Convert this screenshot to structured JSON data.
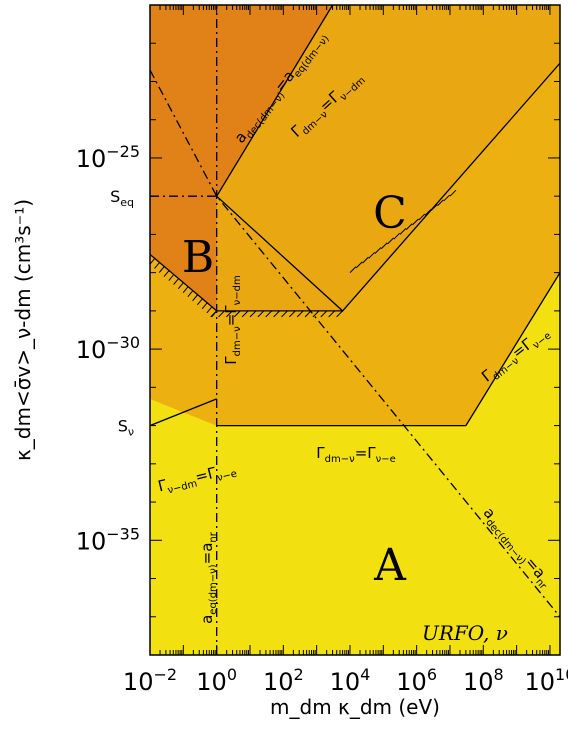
{
  "chart_data": {
    "type": "area",
    "x_scale": "log",
    "y_scale": "log",
    "xlim": [
      0.01,
      20000000000
    ],
    "ylim": [
      1e-38,
      1e-21
    ],
    "xlabel": "m_dm κ_dm (eV)",
    "ylabel": "κ_dm<σ̄v>_ν-dm (cm³s⁻¹)",
    "x_ticks": [
      {
        "base": "10",
        "exp": "−2",
        "value": 0.01
      },
      {
        "base": "10",
        "exp": "0",
        "value": 1
      },
      {
        "base": "10",
        "exp": "2",
        "value": 100
      },
      {
        "base": "10",
        "exp": "4",
        "value": 10000
      },
      {
        "base": "10",
        "exp": "6",
        "value": 1000000
      },
      {
        "base": "10",
        "exp": "8",
        "value": 100000000
      },
      {
        "base": "10",
        "exp": "10",
        "value": 10000000000
      }
    ],
    "y_ticks": [
      {
        "base": "10",
        "exp": "−25",
        "value": 1e-25
      },
      {
        "base": "10",
        "exp": "−30",
        "value": 1e-30
      },
      {
        "base": "10",
        "exp": "−35",
        "value": 1e-35
      }
    ],
    "y_markers": [
      {
        "label": "S",
        "sub": "eq",
        "value": 1e-26
      },
      {
        "label": "S",
        "sub": "ν",
        "value": 1e-32
      }
    ],
    "region_labels": [
      "A",
      "B",
      "C"
    ],
    "colors": {
      "region_A": "#f2e010",
      "region_mid": "#ecb010",
      "region_C": "#e9a812",
      "region_B": "#e08218",
      "line": "#000000"
    },
    "boundaries": [
      {
        "name": "Γ_ν-dm = Γ_ν-e",
        "style": "solid",
        "x": [
          0.01,
          1
        ],
        "y": [
          1e-32,
          5e-32
        ]
      },
      {
        "name": "Γ_dm-ν = Γ_ν-e",
        "style": "solid",
        "x": [
          1,
          30000000
        ],
        "y": [
          1e-32,
          1e-32
        ]
      },
      {
        "name": "Γ_dm-ν = Γ_ν-e (upper)",
        "style": "solid",
        "x": [
          30000000,
          20000000000
        ],
        "y": [
          1e-32,
          1e-28
        ]
      },
      {
        "name": "Γ_dm-ν = Γ_ν-dm",
        "style": "solid",
        "x": [
          1,
          6000,
          20000000000
        ],
        "y": [
          1e-26,
          1e-29,
          3e-23
        ]
      },
      {
        "name": "a_dec(dm-ν) = a_eq(dm-ν)",
        "style": "solid",
        "x": [
          1,
          3000
        ],
        "y": [
          1e-26,
          1e-21
        ]
      },
      {
        "name": "B boundary",
        "style": "solid",
        "x": [
          0.01,
          1,
          6000
        ],
        "y": [
          3e-28,
          1e-29,
          1e-29
        ]
      },
      {
        "name": "a_eq(dm-ν) = a_nr",
        "style": "dashdot",
        "x": [
          1,
          1
        ],
        "y": [
          1e-38,
          1e-21
        ]
      },
      {
        "name": "a_dec(dm-ν) = a_nr",
        "style": "dashdot",
        "x": [
          0.01,
          1,
          20000000000
        ],
        "y": [
          2e-23,
          1e-26,
          1e-37
        ]
      },
      {
        "name": "S_eq level",
        "style": "dashdot",
        "x": [
          0.01,
          1
        ],
        "y": [
          1e-26,
          1e-26
        ]
      }
    ],
    "annotations": [
      {
        "text": "URFO, ν"
      }
    ],
    "line_labels": {
      "nu_dm_nu_e": {
        "a": "Γ",
        "as": "ν−dm",
        "eq": "=",
        "b": "Γ",
        "bs": "ν−e"
      },
      "dm_nu_nu_e_h": {
        "a": "Γ",
        "as": "dm−ν",
        "eq": "=",
        "b": "Γ",
        "bs": "ν−e"
      },
      "dm_nu_nu_e_diag": {
        "a": "Γ",
        "as": "dm−ν",
        "eq": "=",
        "b": "Γ",
        "bs": "ν−e"
      },
      "dm_nu_nu_dm_diag": {
        "a": "Γ",
        "as": "dm−ν",
        "eq": "=",
        "b": "Γ",
        "bs": "ν−dm"
      },
      "dm_nu_nu_dm_vert": {
        "a": "Γ",
        "as": "dm−ν",
        "eq": "=",
        "b": "Γ",
        "bs": "ν−dm"
      },
      "adec_aeq": {
        "a": "a",
        "as": "dec(dm−ν)",
        "eq": "=",
        "b": "a",
        "bs": "eq(dm−ν)"
      },
      "aeq_anr": {
        "a": "a",
        "as": "eq(dm−ν)",
        "eq": "=",
        "b": "a",
        "bs": "nr"
      },
      "adec_anr": {
        "a": "a",
        "as": "dec(dm−ν)",
        "eq": "=",
        "b": "a",
        "bs": "nr"
      }
    }
  }
}
